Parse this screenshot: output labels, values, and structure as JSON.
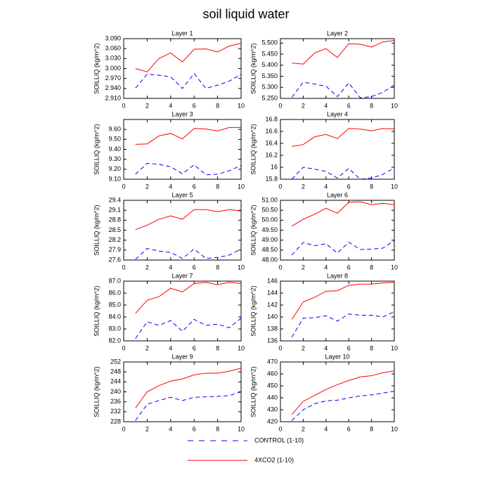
{
  "title": "soil liquid water",
  "legend": [
    {
      "name": "CONTROL (1-10)",
      "color": "#0000ff",
      "dash": true
    },
    {
      "name": "4XCO2 (1-10)",
      "color": "#ff0000",
      "dash": false
    }
  ],
  "chart_data": [
    {
      "type": "line",
      "title": "Layer 1",
      "y_label": "SOILLIQ  (kg/m^2)",
      "x": [
        1,
        2,
        3,
        4,
        5,
        6,
        7,
        8,
        9,
        10
      ],
      "xlim": [
        0,
        10
      ],
      "xticks": [
        0,
        2,
        4,
        6,
        8,
        10
      ],
      "ylim": [
        2.91,
        3.09
      ],
      "yticks": [
        {
          "value": 2.91,
          "label": "2.910"
        },
        {
          "value": 2.94,
          "label": "2.940"
        },
        {
          "value": 2.97,
          "label": "2.970"
        },
        {
          "value": 3.0,
          "label": "3.000"
        },
        {
          "value": 3.03,
          "label": "3.030"
        },
        {
          "value": 3.06,
          "label": "3.060"
        },
        {
          "value": 3.09,
          "label": "3.090"
        }
      ],
      "series": [
        {
          "color": "#0000ff",
          "dash": true,
          "values": [
            2.941,
            2.983,
            2.98,
            2.975,
            2.94,
            2.985,
            2.94,
            2.95,
            2.962,
            2.983
          ]
        },
        {
          "color": "#ff0000",
          "dash": false,
          "values": [
            3.0,
            2.99,
            3.03,
            3.047,
            3.02,
            3.058,
            3.059,
            3.05,
            3.068,
            3.076
          ]
        }
      ]
    },
    {
      "type": "line",
      "title": "Layer 2",
      "y_label": "SOILLIQ  (kg/m^2)",
      "x": [
        1,
        2,
        3,
        4,
        5,
        6,
        7,
        8,
        9,
        10
      ],
      "xlim": [
        0,
        10
      ],
      "xticks": [
        0,
        2,
        4,
        6,
        8,
        10
      ],
      "ylim": [
        5.25,
        5.52
      ],
      "yticks": [
        {
          "value": 5.25,
          "label": "5.250"
        },
        {
          "value": 5.3,
          "label": "5.300"
        },
        {
          "value": 5.35,
          "label": "5.350"
        },
        {
          "value": 5.4,
          "label": "5.400"
        },
        {
          "value": 5.45,
          "label": "5.450"
        },
        {
          "value": 5.5,
          "label": "5.500"
        }
      ],
      "series": [
        {
          "color": "#0000ff",
          "dash": true,
          "values": [
            5.255,
            5.323,
            5.315,
            5.305,
            5.258,
            5.32,
            5.253,
            5.258,
            5.278,
            5.31
          ]
        },
        {
          "color": "#ff0000",
          "dash": false,
          "values": [
            5.41,
            5.405,
            5.455,
            5.475,
            5.435,
            5.497,
            5.495,
            5.482,
            5.505,
            5.512
          ]
        }
      ]
    },
    {
      "type": "line",
      "title": "Layer 3",
      "y_label": "SOILLIQ  (kg/m^2)",
      "x": [
        1,
        2,
        3,
        4,
        5,
        6,
        7,
        8,
        9,
        10
      ],
      "xlim": [
        0,
        10
      ],
      "xticks": [
        0,
        2,
        4,
        6,
        8,
        10
      ],
      "ylim": [
        9.1,
        9.7
      ],
      "yticks": [
        {
          "value": 9.1,
          "label": "9.10"
        },
        {
          "value": 9.2,
          "label": "9.20"
        },
        {
          "value": 9.3,
          "label": "9.30"
        },
        {
          "value": 9.4,
          "label": "9.40"
        },
        {
          "value": 9.5,
          "label": "9.50"
        },
        {
          "value": 9.6,
          "label": "9.60"
        }
      ],
      "series": [
        {
          "color": "#0000ff",
          "dash": true,
          "values": [
            9.15,
            9.26,
            9.25,
            9.225,
            9.155,
            9.245,
            9.145,
            9.15,
            9.185,
            9.24
          ]
        },
        {
          "color": "#ff0000",
          "dash": false,
          "values": [
            9.45,
            9.455,
            9.535,
            9.56,
            9.505,
            9.61,
            9.605,
            9.585,
            9.62,
            9.62
          ]
        }
      ]
    },
    {
      "type": "line",
      "title": "Layer 4",
      "y_label": "SOILLIQ  (kg/m^2)",
      "x": [
        1,
        2,
        3,
        4,
        5,
        6,
        7,
        8,
        9,
        10
      ],
      "xlim": [
        0,
        10
      ],
      "xticks": [
        0,
        2,
        4,
        6,
        8,
        10
      ],
      "ylim": [
        15.8,
        16.8
      ],
      "yticks": [
        15.8,
        16,
        16.2,
        16.4,
        16.6,
        16.8
      ],
      "series": [
        {
          "color": "#0000ff",
          "dash": true,
          "values": [
            15.8,
            16.0,
            15.97,
            15.93,
            15.82,
            15.98,
            15.8,
            15.82,
            15.88,
            15.99
          ]
        },
        {
          "color": "#ff0000",
          "dash": false,
          "values": [
            16.35,
            16.38,
            16.51,
            16.55,
            16.48,
            16.65,
            16.64,
            16.61,
            16.65,
            16.64
          ]
        }
      ]
    },
    {
      "type": "line",
      "title": "Layer 5",
      "y_label": "SOILLIQ  (kg/m^2)",
      "x": [
        1,
        2,
        3,
        4,
        5,
        6,
        7,
        8,
        9,
        10
      ],
      "xlim": [
        0,
        10
      ],
      "xticks": [
        0,
        2,
        4,
        6,
        8,
        10
      ],
      "ylim": [
        27.6,
        29.4
      ],
      "yticks": [
        27.6,
        27.9,
        28.2,
        28.5,
        28.8,
        29.1,
        29.4
      ],
      "series": [
        {
          "color": "#0000ff",
          "dash": true,
          "values": [
            27.62,
            27.95,
            27.87,
            27.83,
            27.65,
            27.93,
            27.65,
            27.68,
            27.75,
            27.93
          ]
        },
        {
          "color": "#ff0000",
          "dash": false,
          "values": [
            28.52,
            28.65,
            28.83,
            28.93,
            28.83,
            29.12,
            29.12,
            29.06,
            29.12,
            29.08
          ]
        }
      ]
    },
    {
      "type": "line",
      "title": "Layer 6",
      "y_label": "SOILLIQ  (kg/m^2)",
      "x": [
        1,
        2,
        3,
        4,
        5,
        6,
        7,
        8,
        9,
        10
      ],
      "xlim": [
        0,
        10
      ],
      "xticks": [
        0,
        2,
        4,
        6,
        8,
        10
      ],
      "ylim": [
        48,
        51
      ],
      "yticks": [
        {
          "value": 48,
          "label": "48.00"
        },
        {
          "value": 48.5,
          "label": "48.50"
        },
        {
          "value": 49,
          "label": "49.00"
        },
        {
          "value": 49.5,
          "label": "49.50"
        },
        {
          "value": 50,
          "label": "50.00"
        },
        {
          "value": 50.5,
          "label": "50.50"
        },
        {
          "value": 51,
          "label": "51.00"
        }
      ],
      "series": [
        {
          "color": "#0000ff",
          "dash": true,
          "values": [
            48.25,
            48.88,
            48.72,
            48.82,
            48.35,
            48.9,
            48.53,
            48.55,
            48.6,
            48.98
          ]
        },
        {
          "color": "#ff0000",
          "dash": false,
          "values": [
            49.7,
            50.05,
            50.3,
            50.6,
            50.35,
            50.9,
            50.93,
            50.78,
            50.85,
            50.78
          ]
        }
      ]
    },
    {
      "type": "line",
      "title": "Layer 7",
      "y_label": "SOILLIQ  (kg/m^2)",
      "x": [
        1,
        2,
        3,
        4,
        5,
        6,
        7,
        8,
        9,
        10
      ],
      "xlim": [
        0,
        10
      ],
      "xticks": [
        0,
        2,
        4,
        6,
        8,
        10
      ],
      "ylim": [
        82,
        87
      ],
      "yticks": [
        {
          "value": 82,
          "label": "82.0"
        },
        {
          "value": 83,
          "label": "83.0"
        },
        {
          "value": 84,
          "label": "84.0"
        },
        {
          "value": 85,
          "label": "85.0"
        },
        {
          "value": 86,
          "label": "86.0"
        },
        {
          "value": 87,
          "label": "87.0"
        }
      ],
      "series": [
        {
          "color": "#0000ff",
          "dash": true,
          "values": [
            82.2,
            83.6,
            83.3,
            83.7,
            82.8,
            83.8,
            83.3,
            83.4,
            83.1,
            83.9
          ]
        },
        {
          "color": "#ff0000",
          "dash": false,
          "values": [
            84.3,
            85.4,
            85.7,
            86.4,
            86.1,
            86.8,
            86.9,
            86.7,
            86.9,
            86.8
          ]
        }
      ]
    },
    {
      "type": "line",
      "title": "Layer 8",
      "y_label": "SOILLIQ  (kg/m^2)",
      "x": [
        1,
        2,
        3,
        4,
        5,
        6,
        7,
        8,
        9,
        10
      ],
      "xlim": [
        0,
        10
      ],
      "xticks": [
        0,
        2,
        4,
        6,
        8,
        10
      ],
      "ylim": [
        136,
        146
      ],
      "yticks": [
        136,
        138,
        140,
        142,
        144,
        146
      ],
      "series": [
        {
          "color": "#0000ff",
          "dash": true,
          "values": [
            136.6,
            139.8,
            139.9,
            140.2,
            139.3,
            140.5,
            140.3,
            140.3,
            140.0,
            140.9
          ]
        },
        {
          "color": "#ff0000",
          "dash": false,
          "values": [
            139.6,
            142.5,
            143.3,
            144.3,
            144.4,
            145.3,
            145.5,
            145.5,
            145.7,
            145.8
          ]
        }
      ]
    },
    {
      "type": "line",
      "title": "Layer 9",
      "y_label": "SOILLIQ  (kg/m^2)",
      "x": [
        1,
        2,
        3,
        4,
        5,
        6,
        7,
        8,
        9,
        10
      ],
      "xlim": [
        0,
        10
      ],
      "xticks": [
        0,
        2,
        4,
        6,
        8,
        10
      ],
      "ylim": [
        228,
        252
      ],
      "yticks": [
        228,
        232,
        236,
        240,
        244,
        248,
        252
      ],
      "series": [
        {
          "color": "#0000ff",
          "dash": true,
          "values": [
            228.5,
            235.0,
            236.5,
            237.8,
            236.5,
            237.8,
            238.0,
            238.2,
            238.5,
            240.0
          ]
        },
        {
          "color": "#ff0000",
          "dash": false,
          "values": [
            233.5,
            240.0,
            242.5,
            244.3,
            245.2,
            246.8,
            247.5,
            247.5,
            248.3,
            249.5
          ]
        }
      ]
    },
    {
      "type": "line",
      "title": "Layer 10",
      "y_label": "SOILLIQ  (kg/m^2)",
      "x": [
        1,
        2,
        3,
        4,
        5,
        6,
        7,
        8,
        9,
        10
      ],
      "xlim": [
        0,
        10
      ],
      "xticks": [
        0,
        2,
        4,
        6,
        8,
        10
      ],
      "ylim": [
        420,
        470
      ],
      "yticks": [
        420,
        430,
        440,
        450,
        460,
        470
      ],
      "series": [
        {
          "color": "#0000ff",
          "dash": true,
          "values": [
            421,
            430,
            435,
            437.5,
            438,
            440,
            441.5,
            442.5,
            444,
            445.5
          ]
        },
        {
          "color": "#ff0000",
          "dash": false,
          "values": [
            426,
            437,
            442,
            447,
            451,
            454.5,
            457.5,
            458.5,
            461,
            462.5
          ]
        }
      ]
    }
  ]
}
